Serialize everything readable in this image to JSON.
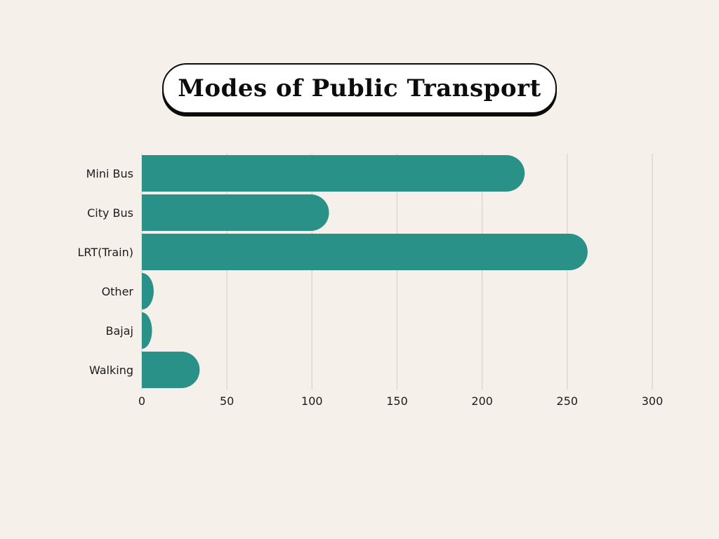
{
  "chart_data": {
    "type": "bar",
    "orientation": "horizontal",
    "title": "Modes of Public Transport",
    "categories": [
      "Mini Bus",
      "City Bus",
      "LRT(Train)",
      "Other",
      "Bajaj",
      "Walking"
    ],
    "values": [
      225,
      110,
      262,
      7,
      6,
      34
    ],
    "xlim": [
      0,
      300
    ],
    "xticks": [
      0,
      50,
      100,
      150,
      200,
      250,
      300
    ],
    "grid": "vertical",
    "bar_color": "#2a9189",
    "grid_color": "#d6d2cc",
    "background": "#f5f1ea"
  }
}
